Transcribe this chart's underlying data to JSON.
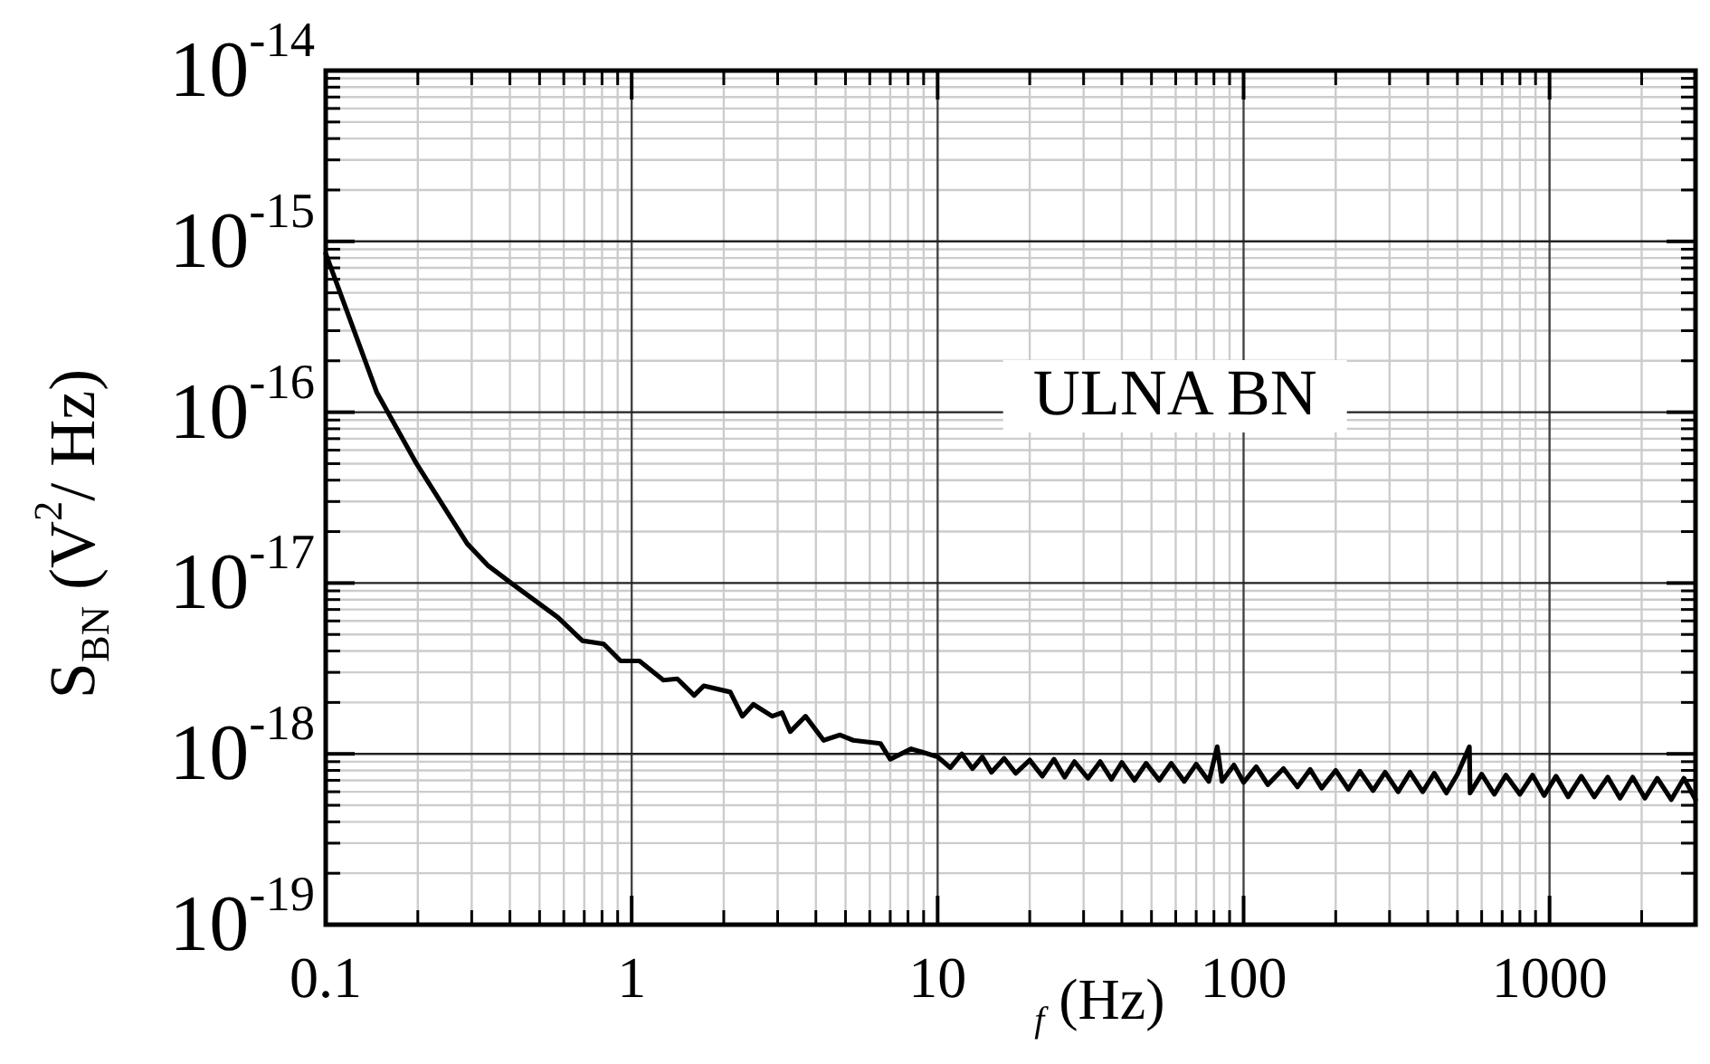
{
  "chart_data": {
    "type": "line",
    "xlabel": "$_{f}$ (Hz)",
    "ylabel": "S$_{BN}$ (V$^{2}$/ Hz)",
    "log": "xy",
    "grid": true,
    "xlim": [
      0.1,
      3000
    ],
    "xticks": [
      0.1,
      1,
      10,
      100,
      1000
    ],
    "ylim": [
      1e-19,
      1e-14
    ],
    "yticks": [
      {
        "value": 1e-19,
        "label": "10$^{-19}$"
      },
      {
        "value": 1e-18,
        "label": "10$^{-18}$"
      },
      {
        "value": 1e-17,
        "label": "10$^{-17}$"
      },
      {
        "value": 1e-16,
        "label": "10$^{-16}$"
      },
      {
        "value": 1e-15,
        "label": "10$^{-15}$"
      },
      {
        "value": 1e-14,
        "label": "10$^{-14}$"
      }
    ],
    "annotations": [
      "ULNA BN"
    ],
    "series": [
      {
        "color": "#000000",
        "x": [
          0.1,
          0.147,
          0.198,
          0.29,
          0.34,
          0.41,
          0.574,
          0.69,
          0.81,
          0.92,
          1.06,
          1.27,
          1.41,
          1.6,
          1.72,
          2.1,
          2.3,
          2.5,
          2.88,
          3.1,
          3.3,
          3.7,
          4.24,
          4.8,
          5.3,
          6.5,
          7.0,
          8.2,
          10,
          11,
          12,
          13,
          14,
          15,
          16.5,
          18,
          20,
          22,
          24,
          26,
          28,
          31,
          34,
          37,
          40,
          44,
          48,
          53,
          58,
          64,
          70,
          77,
          82,
          85,
          93,
          100,
          110,
          120,
          135,
          150,
          165,
          180,
          200,
          220,
          240,
          265,
          290,
          320,
          350,
          385,
          420,
          460,
          500,
          547,
          550,
          600,
          660,
          720,
          800,
          880,
          960,
          1050,
          1150,
          1270,
          1400,
          1550,
          1700,
          1870,
          2050,
          2250,
          2500,
          2750,
          3000
        ],
        "values": [
          8.5e-16,
          1.3e-16,
          5e-17,
          1.7e-17,
          1.26e-17,
          9.8e-18,
          6.3e-18,
          4.6e-18,
          4.4e-18,
          3.5e-18,
          3.5e-18,
          2.7e-18,
          2.75e-18,
          2.2e-18,
          2.5e-18,
          2.3e-18,
          1.66e-18,
          1.95e-18,
          1.66e-18,
          1.74e-18,
          1.35e-18,
          1.66e-18,
          1.2e-18,
          1.29e-18,
          1.2e-18,
          1.15e-18,
          9.3e-19,
          1.07e-18,
          9.6e-19,
          8.3e-19,
          1e-18,
          8.2e-19,
          9.6e-19,
          7.8e-19,
          9.4e-19,
          7.7e-19,
          9.2e-19,
          7.4e-19,
          9.3e-19,
          7.3e-19,
          9e-19,
          7.2e-19,
          9e-19,
          7.1e-19,
          8.9e-19,
          7e-19,
          8.8e-19,
          7e-19,
          8.8e-19,
          6.9e-19,
          8.7e-19,
          6.9e-19,
          1.1e-18,
          6.9e-19,
          8.6e-19,
          6.8e-19,
          8.4e-19,
          6.6e-19,
          8.2e-19,
          6.4e-19,
          8.1e-19,
          6.3e-19,
          8e-19,
          6.2e-19,
          7.9e-19,
          6.1e-19,
          7.8e-19,
          6e-19,
          7.8e-19,
          6e-19,
          7.7e-19,
          5.9e-19,
          7.6e-19,
          1.1e-18,
          5.9e-19,
          7.6e-19,
          5.8e-19,
          7.5e-19,
          5.8e-19,
          7.5e-19,
          5.7e-19,
          7.4e-19,
          5.6e-19,
          7.4e-19,
          5.6e-19,
          7.3e-19,
          5.5e-19,
          7.3e-19,
          5.5e-19,
          7.2e-19,
          5.4e-19,
          7.2e-19,
          5.4e-19
        ]
      }
    ]
  }
}
